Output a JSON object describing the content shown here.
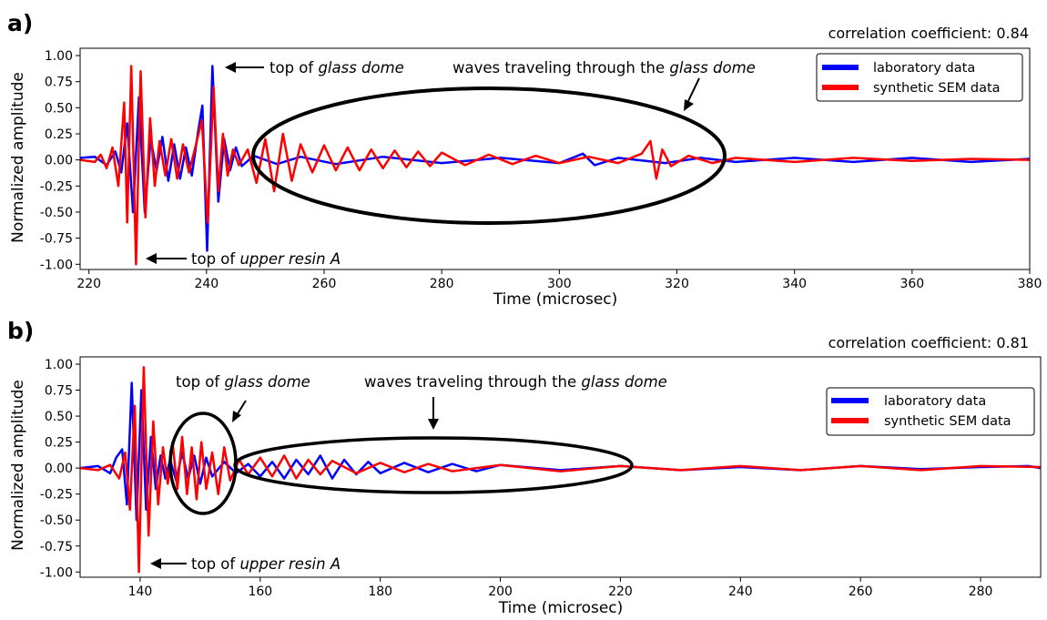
{
  "chart_data": [
    {
      "type": "line",
      "panel_label": "a)",
      "correlation_text": "correlation coefficient: 0.84",
      "xlabel": "Time (microsec)",
      "ylabel": "Normalized amplitude",
      "xlim": [
        218.5,
        380
      ],
      "ylim": [
        -1.05,
        1.07
      ],
      "xticks": [
        "220",
        "240",
        "260",
        "280",
        "300",
        "320",
        "340",
        "360",
        "380"
      ],
      "yticks": [
        "1.00",
        "0.75",
        "0.50",
        "0.25",
        "0.00",
        "-0.25",
        "-0.50",
        "-0.75",
        "-1.00"
      ],
      "legend_position": "top-right",
      "series": [
        {
          "name": "laboratory data",
          "color": "#0000ff",
          "points": [
            [
              218.5,
              0.02
            ],
            [
              221,
              0.03
            ],
            [
              223,
              -0.05
            ],
            [
              224.5,
              0.08
            ],
            [
              225.5,
              -0.12
            ],
            [
              226.5,
              0.35
            ],
            [
              227.5,
              -0.5
            ],
            [
              228.5,
              0.6
            ],
            [
              229.5,
              -0.5
            ],
            [
              230.5,
              0.2
            ],
            [
              231.5,
              -0.1
            ],
            [
              232.5,
              0.22
            ],
            [
              233.5,
              -0.2
            ],
            [
              234.5,
              0.15
            ],
            [
              235.5,
              -0.18
            ],
            [
              236.5,
              0.12
            ],
            [
              237.5,
              -0.15
            ],
            [
              238.5,
              0.25
            ],
            [
              239.3,
              0.52
            ],
            [
              240.1,
              -0.87
            ],
            [
              241,
              0.9
            ],
            [
              242,
              -0.4
            ],
            [
              243,
              0.2
            ],
            [
              244,
              -0.1
            ],
            [
              245,
              0.12
            ],
            [
              246,
              -0.06
            ],
            [
              248,
              0.04
            ],
            [
              252,
              -0.04
            ],
            [
              256,
              0.03
            ],
            [
              262,
              -0.04
            ],
            [
              270,
              0.03
            ],
            [
              280,
              -0.03
            ],
            [
              290,
              0.02
            ],
            [
              300,
              -0.03
            ],
            [
              304,
              0.06
            ],
            [
              306,
              -0.05
            ],
            [
              310,
              0.02
            ],
            [
              318,
              -0.03
            ],
            [
              324,
              0.02
            ],
            [
              330,
              -0.02
            ],
            [
              340,
              0.02
            ],
            [
              350,
              -0.02
            ],
            [
              360,
              0.02
            ],
            [
              370,
              -0.02
            ],
            [
              380,
              0.01
            ]
          ]
        },
        {
          "name": "synthetic SEM data",
          "color": "#ff0000",
          "points": [
            [
              218.5,
              0.0
            ],
            [
              221,
              -0.02
            ],
            [
              222,
              0.05
            ],
            [
              223,
              -0.08
            ],
            [
              224,
              0.12
            ],
            [
              225,
              -0.25
            ],
            [
              226,
              0.55
            ],
            [
              226.5,
              -0.6
            ],
            [
              227.2,
              0.9
            ],
            [
              228,
              -1.0
            ],
            [
              228.8,
              0.85
            ],
            [
              229.6,
              -0.55
            ],
            [
              230.4,
              0.4
            ],
            [
              231.2,
              -0.25
            ],
            [
              232,
              0.18
            ],
            [
              233,
              -0.15
            ],
            [
              234,
              0.2
            ],
            [
              235,
              -0.18
            ],
            [
              236,
              0.15
            ],
            [
              237,
              -0.12
            ],
            [
              238,
              0.1
            ],
            [
              239.2,
              0.38
            ],
            [
              240.2,
              -0.6
            ],
            [
              241.2,
              0.7
            ],
            [
              242,
              -0.3
            ],
            [
              242.8,
              0.25
            ],
            [
              243.6,
              -0.15
            ],
            [
              244.5,
              0.1
            ],
            [
              245.5,
              -0.05
            ],
            [
              247,
              0.1
            ],
            [
              248.5,
              -0.22
            ],
            [
              250,
              0.2
            ],
            [
              251.5,
              -0.3
            ],
            [
              253,
              0.25
            ],
            [
              254.5,
              -0.2
            ],
            [
              256,
              0.15
            ],
            [
              258,
              -0.12
            ],
            [
              260,
              0.14
            ],
            [
              262,
              -0.1
            ],
            [
              264,
              0.12
            ],
            [
              266,
              -0.1
            ],
            [
              268,
              0.1
            ],
            [
              270,
              -0.08
            ],
            [
              272,
              0.09
            ],
            [
              274,
              -0.07
            ],
            [
              276,
              0.08
            ],
            [
              278,
              -0.06
            ],
            [
              280,
              0.07
            ],
            [
              284,
              -0.05
            ],
            [
              288,
              0.05
            ],
            [
              292,
              -0.04
            ],
            [
              296,
              0.04
            ],
            [
              300,
              -0.03
            ],
            [
              305,
              0.03
            ],
            [
              310,
              -0.03
            ],
            [
              314,
              0.06
            ],
            [
              315.5,
              0.18
            ],
            [
              316.5,
              -0.18
            ],
            [
              317.5,
              0.1
            ],
            [
              319,
              -0.06
            ],
            [
              322,
              0.04
            ],
            [
              326,
              -0.03
            ],
            [
              330,
              0.02
            ],
            [
              340,
              -0.02
            ],
            [
              350,
              0.02
            ],
            [
              360,
              -0.01
            ],
            [
              370,
              0.01
            ],
            [
              380,
              0.0
            ]
          ]
        }
      ],
      "annotations": [
        {
          "parts": [
            [
              "top of ",
              false
            ],
            [
              "glass dome",
              true
            ]
          ]
        },
        {
          "parts": [
            [
              "waves traveling through the ",
              false
            ],
            [
              "glass dome",
              true
            ]
          ]
        },
        {
          "parts": [
            [
              "top of ",
              false
            ],
            [
              "upper resin A",
              true
            ]
          ]
        }
      ]
    },
    {
      "type": "line",
      "panel_label": "b)",
      "correlation_text": "correlation coefficient: 0.81",
      "xlabel": "Time (microsec)",
      "ylabel": "Normalized amplitude",
      "xlim": [
        130,
        290
      ],
      "ylim": [
        -1.05,
        1.07
      ],
      "xticks": [
        "140",
        "160",
        "180",
        "200",
        "220",
        "240",
        "260",
        "280"
      ],
      "yticks": [
        "1.00",
        "0.75",
        "0.50",
        "0.25",
        "0.00",
        "-0.25",
        "-0.50",
        "-0.75",
        "-1.00"
      ],
      "legend_position": "top-right",
      "series": [
        {
          "name": "laboratory data",
          "color": "#0000ff",
          "points": [
            [
              130,
              0.0
            ],
            [
              133,
              0.02
            ],
            [
              135,
              -0.05
            ],
            [
              136,
              0.1
            ],
            [
              137,
              0.18
            ],
            [
              137.8,
              -0.35
            ],
            [
              138.6,
              0.82
            ],
            [
              139.4,
              -0.5
            ],
            [
              140.2,
              0.75
            ],
            [
              141,
              -0.4
            ],
            [
              141.8,
              0.3
            ],
            [
              142.6,
              -0.2
            ],
            [
              143.4,
              0.12
            ],
            [
              144.2,
              -0.1
            ],
            [
              145,
              0.08
            ],
            [
              146,
              -0.12
            ],
            [
              147,
              0.15
            ],
            [
              148,
              -0.1
            ],
            [
              149,
              0.12
            ],
            [
              150,
              -0.15
            ],
            [
              151,
              0.1
            ],
            [
              152,
              -0.08
            ],
            [
              154,
              0.06
            ],
            [
              156,
              -0.05
            ],
            [
              158,
              0.04
            ],
            [
              160,
              -0.08
            ],
            [
              162,
              0.06
            ],
            [
              164,
              -0.1
            ],
            [
              166,
              0.08
            ],
            [
              168,
              -0.06
            ],
            [
              170,
              0.12
            ],
            [
              172,
              -0.1
            ],
            [
              174,
              0.08
            ],
            [
              176,
              -0.06
            ],
            [
              178,
              0.06
            ],
            [
              180,
              -0.05
            ],
            [
              184,
              0.05
            ],
            [
              188,
              -0.04
            ],
            [
              192,
              0.04
            ],
            [
              196,
              -0.03
            ],
            [
              200,
              0.03
            ],
            [
              210,
              -0.02
            ],
            [
              220,
              0.02
            ],
            [
              230,
              -0.02
            ],
            [
              240,
              0.01
            ],
            [
              250,
              -0.02
            ],
            [
              260,
              0.02
            ],
            [
              270,
              -0.01
            ],
            [
              280,
              0.01
            ],
            [
              288,
              0.02
            ],
            [
              290,
              0.0
            ]
          ]
        },
        {
          "name": "synthetic SEM data",
          "color": "#ff0000",
          "points": [
            [
              130,
              0.0
            ],
            [
              133,
              -0.02
            ],
            [
              135,
              0.03
            ],
            [
              136.5,
              -0.1
            ],
            [
              137.5,
              0.15
            ],
            [
              138.3,
              -0.4
            ],
            [
              139.1,
              0.6
            ],
            [
              139.8,
              -1.0
            ],
            [
              140.6,
              0.97
            ],
            [
              141.4,
              -0.65
            ],
            [
              142.2,
              0.45
            ],
            [
              143,
              -0.35
            ],
            [
              143.8,
              0.2
            ],
            [
              144.6,
              -0.15
            ],
            [
              145.4,
              0.25
            ],
            [
              146.2,
              -0.2
            ],
            [
              147,
              0.3
            ],
            [
              147.8,
              -0.25
            ],
            [
              148.6,
              0.2
            ],
            [
              149.4,
              -0.3
            ],
            [
              150.2,
              0.25
            ],
            [
              151,
              -0.2
            ],
            [
              152,
              0.15
            ],
            [
              153,
              -0.25
            ],
            [
              154,
              0.2
            ],
            [
              155,
              -0.12
            ],
            [
              156.5,
              0.08
            ],
            [
              158,
              -0.06
            ],
            [
              160,
              0.1
            ],
            [
              162,
              -0.08
            ],
            [
              164,
              0.12
            ],
            [
              166,
              -0.1
            ],
            [
              168,
              0.08
            ],
            [
              170,
              -0.06
            ],
            [
              172,
              0.07
            ],
            [
              176,
              -0.05
            ],
            [
              180,
              0.05
            ],
            [
              184,
              -0.04
            ],
            [
              188,
              0.04
            ],
            [
              192,
              -0.03
            ],
            [
              200,
              0.03
            ],
            [
              210,
              -0.03
            ],
            [
              220,
              0.02
            ],
            [
              230,
              -0.02
            ],
            [
              240,
              0.02
            ],
            [
              250,
              -0.02
            ],
            [
              260,
              0.02
            ],
            [
              270,
              -0.02
            ],
            [
              280,
              0.02
            ],
            [
              290,
              0.01
            ]
          ]
        }
      ],
      "annotations": [
        {
          "parts": [
            [
              "top of ",
              false
            ],
            [
              "glass dome",
              true
            ]
          ]
        },
        {
          "parts": [
            [
              "waves traveling through the ",
              false
            ],
            [
              "glass dome",
              true
            ]
          ]
        },
        {
          "parts": [
            [
              "top of ",
              false
            ],
            [
              "upper resin A",
              true
            ]
          ]
        }
      ]
    }
  ]
}
